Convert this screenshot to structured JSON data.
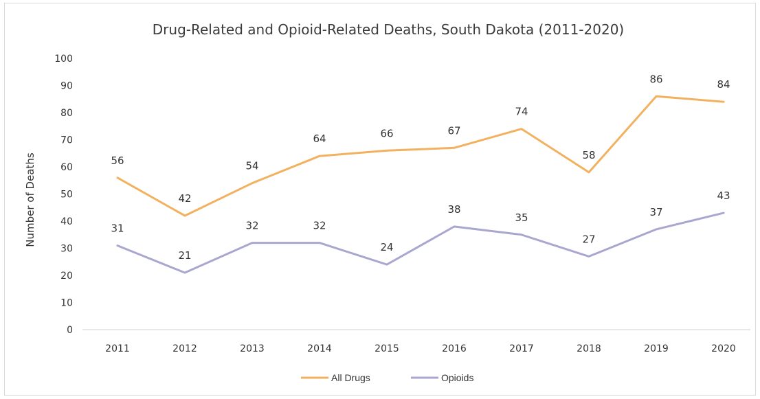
{
  "chart_data": {
    "type": "line",
    "title": "Drug-Related and Opioid-Related Deaths, South Dakota (2011-2020)",
    "xlabel": "",
    "ylabel": "Number of Deaths",
    "x": [
      "2011",
      "2012",
      "2013",
      "2014",
      "2015",
      "2016",
      "2017",
      "2018",
      "2019",
      "2020"
    ],
    "ylim": [
      0,
      100
    ],
    "yticks": [
      "0",
      "10",
      "20",
      "30",
      "40",
      "50",
      "60",
      "70",
      "80",
      "90",
      "100"
    ],
    "grid": false,
    "legend_position": "bottom",
    "series": [
      {
        "name": "All Drugs",
        "color": "#f2b15f",
        "values": [
          56,
          42,
          54,
          64,
          66,
          67,
          74,
          58,
          86,
          84
        ]
      },
      {
        "name": "Opioids",
        "color": "#a9a7cf",
        "values": [
          31,
          21,
          32,
          32,
          24,
          38,
          35,
          27,
          37,
          43
        ]
      }
    ]
  }
}
